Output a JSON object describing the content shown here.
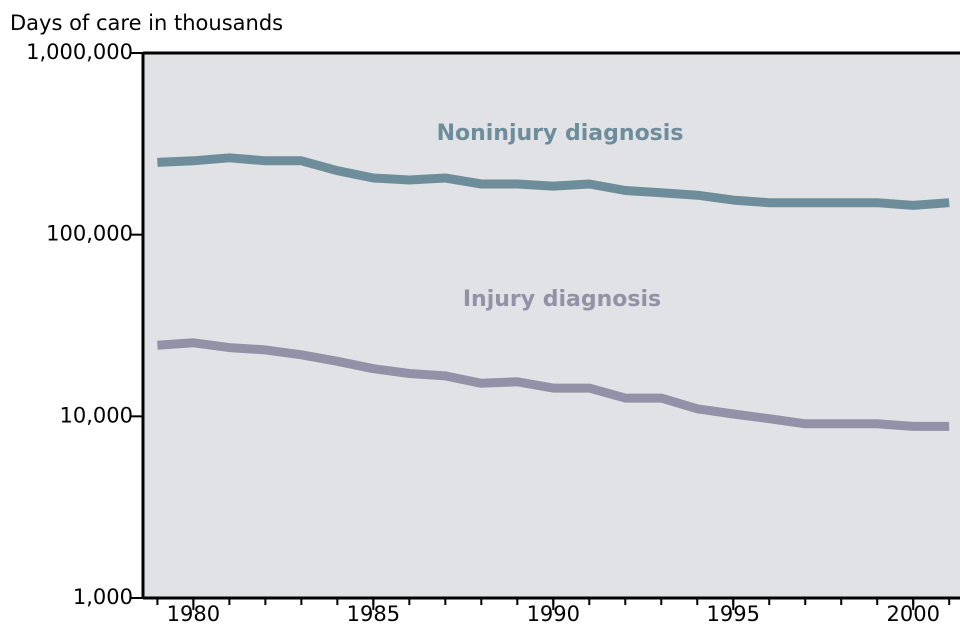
{
  "chart_data": {
    "type": "line",
    "y_axis_label": "Days of care in thousands",
    "log_y": true,
    "x": [
      1979,
      1980,
      1981,
      1982,
      1983,
      1984,
      1985,
      1986,
      1987,
      1988,
      1989,
      1990,
      1991,
      1992,
      1993,
      1994,
      1995,
      1996,
      1997,
      1998,
      1999,
      2000,
      2001
    ],
    "series": [
      {
        "name": "Noninjury diagnosis",
        "color": "#6e8d9b",
        "values": [
          250000,
          255000,
          265000,
          255000,
          255000,
          225000,
          205000,
          200000,
          205000,
          190000,
          190000,
          185000,
          190000,
          175000,
          170000,
          165000,
          155000,
          150000,
          150000,
          150000,
          150000,
          145000,
          150000
        ]
      },
      {
        "name": "Injury diagnosis",
        "color": "#9391a8",
        "values": [
          24600,
          25400,
          23900,
          23200,
          21800,
          20100,
          18300,
          17200,
          16700,
          15200,
          15500,
          14300,
          14300,
          12600,
          12600,
          11000,
          10300,
          9700,
          9100,
          9100,
          9100,
          8800,
          8800
        ]
      }
    ],
    "xlim": [
      1978.6,
      2001.3
    ],
    "xticks": [
      1980,
      1985,
      1990,
      1995,
      2000
    ],
    "ylim": [
      1000,
      1000000
    ],
    "yticks": [
      {
        "value": 1000,
        "label": "1,000"
      },
      {
        "value": 10000,
        "label": "10,000"
      },
      {
        "value": 100000,
        "label": "100,000"
      },
      {
        "value": 1000000,
        "label": "1,000,000"
      }
    ],
    "background": "#e1e2e5"
  }
}
